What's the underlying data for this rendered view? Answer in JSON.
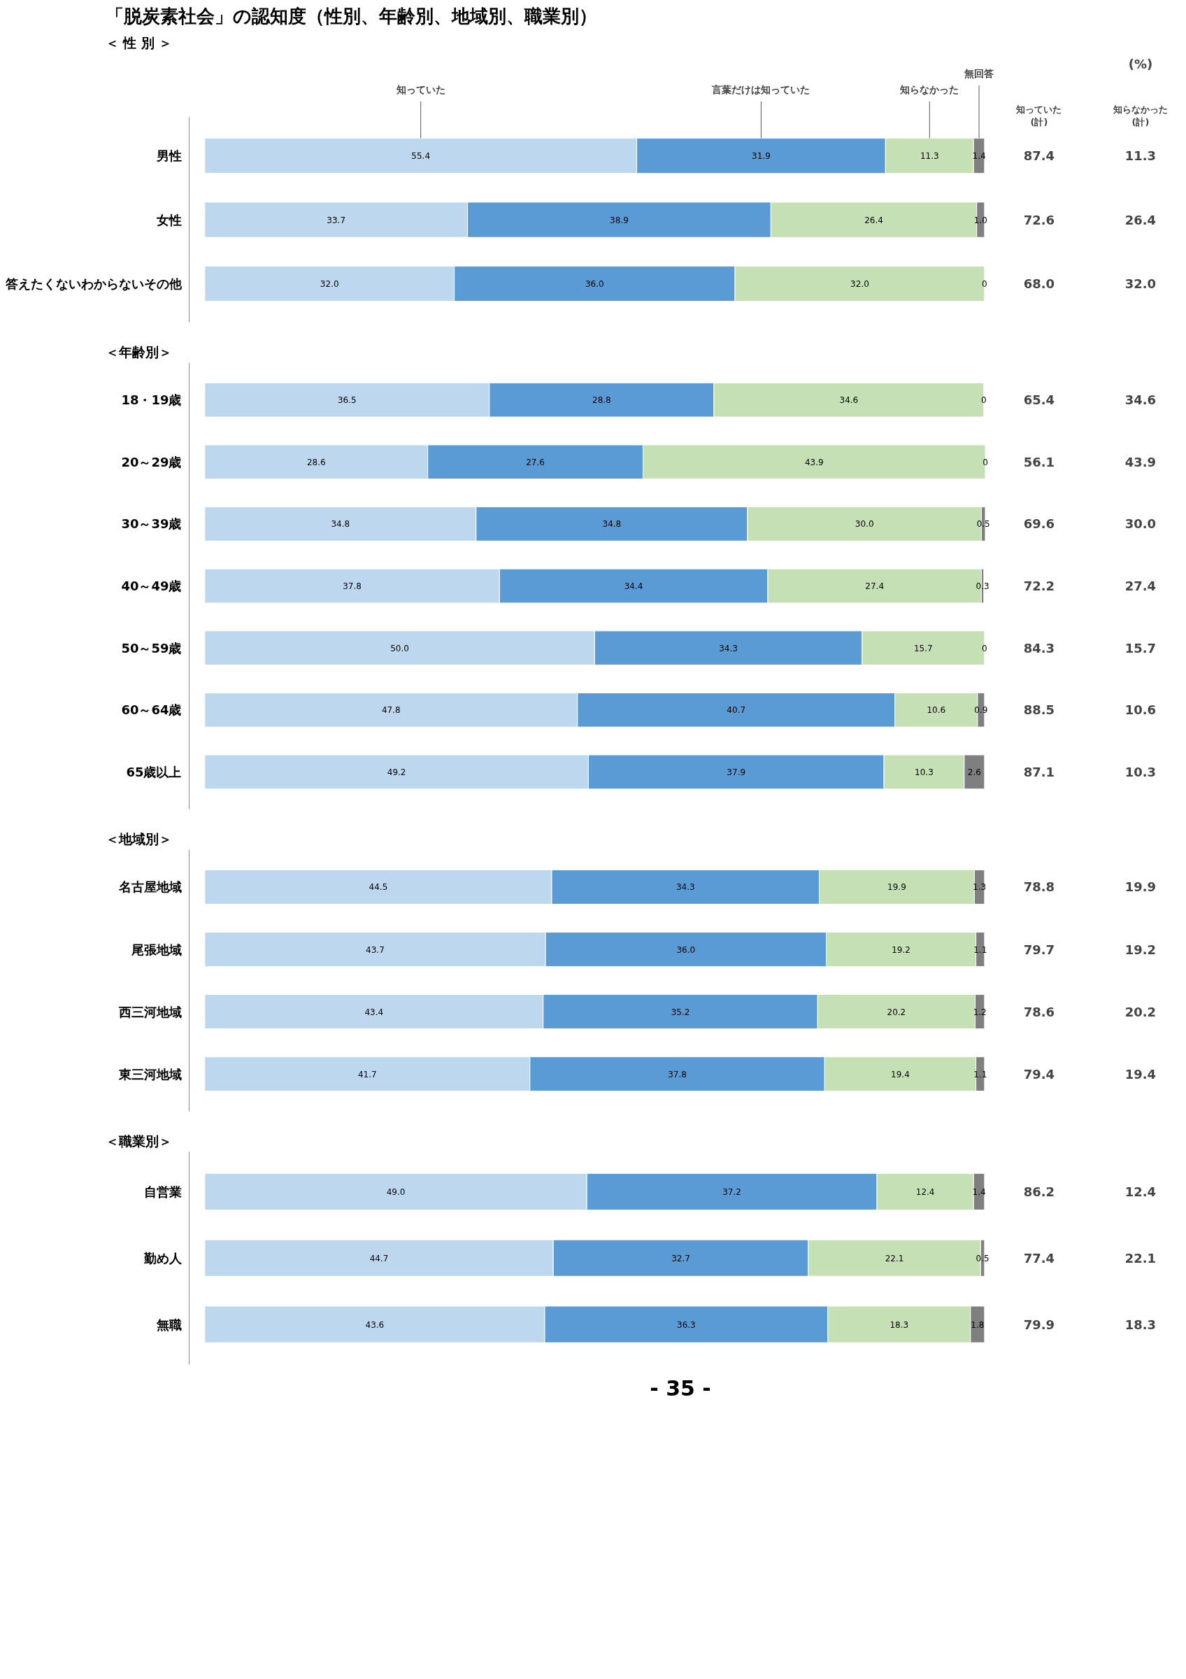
{
  "chart_data": [
    {
      "type": "bar",
      "orientation": "horizontal",
      "stacked": true,
      "title": "「脱炭素社会」の認知度（性別、年齢別、地域別、職業別）",
      "subtitle": "＜ 性 別 ＞",
      "categories": [
        "男性",
        "女性",
        "答えたくないわからないその他"
      ],
      "xlim": [
        0,
        100
      ],
      "tick_labels": "y",
      "grid": false,
      "legend": "top",
      "series": [
        {
          "name": "知っていた",
          "color": "#bdd7ee",
          "values": [
            55.4,
            33.7,
            32.0
          ],
          "value_labels": [
            "55.4",
            "33.7",
            "32.0"
          ]
        },
        {
          "name": "言葉だけは知っていた",
          "color": "#5b9bd5",
          "values": [
            31.9,
            38.9,
            36.0
          ],
          "value_labels": [
            "31.9",
            "38.9",
            "36.0"
          ]
        },
        {
          "name": "知らなかった",
          "color": "#c5e0b4",
          "values": [
            11.3,
            26.4,
            32.0
          ],
          "value_labels": [
            "11.3",
            "26.4",
            "32.0"
          ]
        },
        {
          "name": "無回答",
          "color": "#7f7f7f",
          "values": [
            1.4,
            1.0,
            0
          ],
          "value_labels": [
            "1.4",
            "1.0",
            "0"
          ]
        }
      ],
      "annotations": [
        "(%)",
        "知っていた\n(計)",
        "知らなかった\n(計)",
        "87.4",
        "72.6",
        "68.0",
        "11.3",
        "26.4",
        "32.0"
      ]
    },
    {
      "type": "bar",
      "orientation": "horizontal",
      "stacked": true,
      "subtitle": "＜年齢別＞",
      "categories": [
        "18・19歳",
        "20～29歳",
        "30～39歳",
        "40～49歳",
        "50～59歳",
        "60～64歳",
        "65歳以上"
      ],
      "xlim": [
        0,
        100
      ],
      "tick_labels": "y",
      "grid": false,
      "series": [
        {
          "color": "#bdd7ee",
          "values": [
            36.5,
            28.6,
            34.8,
            37.8,
            50.0,
            47.8,
            49.2
          ],
          "value_labels": [
            "36.5",
            "28.6",
            "34.8",
            "37.8",
            "50.0",
            "47.8",
            "49.2"
          ]
        },
        {
          "color": "#5b9bd5",
          "values": [
            28.8,
            27.6,
            34.8,
            34.4,
            34.3,
            40.7,
            37.9
          ],
          "value_labels": [
            "28.8",
            "27.6",
            "34.8",
            "34.4",
            "34.3",
            "40.7",
            "37.9"
          ]
        },
        {
          "color": "#c5e0b4",
          "values": [
            34.6,
            43.9,
            30.0,
            27.4,
            15.7,
            10.6,
            10.3
          ],
          "value_labels": [
            "34.6",
            "43.9",
            "30.0",
            "27.4",
            "15.7",
            "10.6",
            "10.3"
          ]
        },
        {
          "color": "#7f7f7f",
          "values": [
            0,
            0,
            0.5,
            0.3,
            0,
            0.9,
            2.6
          ],
          "value_labels": [
            "0",
            "0",
            "0.5",
            "0.3",
            "0",
            "0.9",
            "2.6"
          ]
        }
      ],
      "annotations": [
        "65.4",
        "56.1",
        "69.6",
        "72.2",
        "84.3",
        "88.5",
        "87.1",
        "34.6",
        "43.9",
        "30.0",
        "27.4",
        "15.7",
        "10.6",
        "10.3"
      ]
    },
    {
      "type": "bar",
      "orientation": "horizontal",
      "stacked": true,
      "subtitle": "＜地域別＞",
      "categories": [
        "名古屋地域",
        "尾張地域",
        "西三河地域",
        "東三河地域"
      ],
      "xlim": [
        0,
        100
      ],
      "tick_labels": "y",
      "grid": false,
      "series": [
        {
          "color": "#bdd7ee",
          "values": [
            44.5,
            43.7,
            43.4,
            41.7
          ],
          "value_labels": [
            "44.5",
            "43.7",
            "43.4",
            "41.7"
          ]
        },
        {
          "color": "#5b9bd5",
          "values": [
            34.3,
            36.0,
            35.2,
            37.8
          ],
          "value_labels": [
            "34.3",
            "36.0",
            "35.2",
            "37.8"
          ]
        },
        {
          "color": "#c5e0b4",
          "values": [
            19.9,
            19.2,
            20.2,
            19.4
          ],
          "value_labels": [
            "19.9",
            "19.2",
            "20.2",
            "19.4"
          ]
        },
        {
          "color": "#7f7f7f",
          "values": [
            1.3,
            1.1,
            1.2,
            1.1
          ],
          "value_labels": [
            "1.3",
            "1.1",
            "1.2",
            "1.1"
          ]
        }
      ],
      "annotations": [
        "78.8",
        "79.7",
        "78.6",
        "79.4",
        "19.9",
        "19.2",
        "20.2",
        "19.4"
      ]
    },
    {
      "type": "bar",
      "orientation": "horizontal",
      "stacked": true,
      "subtitle": "＜職業別＞",
      "categories": [
        "自営業",
        "勤め人",
        "無職"
      ],
      "xlim": [
        0,
        100
      ],
      "tick_labels": "y",
      "grid": false,
      "series": [
        {
          "color": "#bdd7ee",
          "values": [
            49.0,
            44.7,
            43.6
          ],
          "value_labels": [
            "49.0",
            "44.7",
            "43.6"
          ]
        },
        {
          "color": "#5b9bd5",
          "values": [
            37.2,
            32.7,
            36.3
          ],
          "value_labels": [
            "37.2",
            "32.7",
            "36.3"
          ]
        },
        {
          "color": "#c5e0b4",
          "values": [
            12.4,
            22.1,
            18.3
          ],
          "value_labels": [
            "12.4",
            "22.1",
            "18.3"
          ]
        },
        {
          "color": "#7f7f7f",
          "values": [
            1.4,
            0.5,
            1.8
          ],
          "value_labels": [
            "1.4",
            "0.5",
            "1.8"
          ]
        }
      ],
      "annotations": [
        "- 35 -",
        "86.2",
        "77.4",
        "79.9",
        "12.4",
        "22.1",
        "18.3"
      ]
    }
  ]
}
